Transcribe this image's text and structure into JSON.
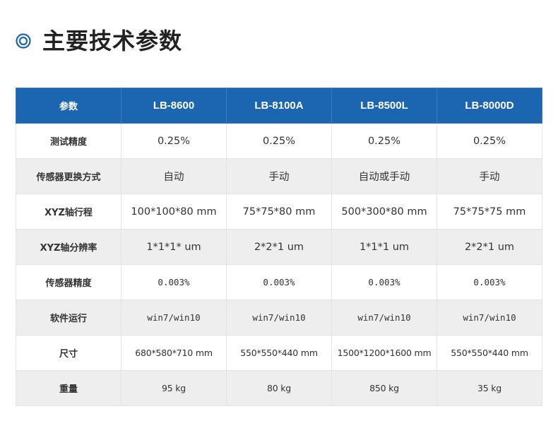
{
  "section": {
    "title": "主要技术参数",
    "icon": "target-circle-icon",
    "accent_color": "#1c65b1"
  },
  "table": {
    "header": [
      "参数",
      "LB-8600",
      "LB-8100A",
      "LB-8500L",
      "LB-8000D"
    ],
    "rows": [
      {
        "label": "测试精度",
        "values": [
          "0.25%",
          "0.25%",
          "0.25%",
          "0.25%"
        ]
      },
      {
        "label": "传感器更换方式",
        "values": [
          "自动",
          "手动",
          "自动或手动",
          "手动"
        ]
      },
      {
        "label": "XYZ轴行程",
        "values": [
          "100*100*80 mm",
          "75*75*80 mm",
          "500*300*80 mm",
          "75*75*75 mm"
        ]
      },
      {
        "label": "XYZ轴分辨率",
        "values": [
          "1*1*1* um",
          "2*2*1 um",
          "1*1*1 um",
          "2*2*1 um"
        ]
      },
      {
        "label": "传感器精度",
        "values": [
          "0.003%",
          "0.003%",
          "0.003%",
          "0.003%"
        ]
      },
      {
        "label": "软件运行",
        "values": [
          "win7/win10",
          "win7/win10",
          "win7/win10",
          "win7/win10"
        ]
      },
      {
        "label": "尺寸",
        "values": [
          "680*580*710 mm",
          "550*550*440 mm",
          "1500*1200*1600 mm",
          "550*550*440 mm"
        ]
      },
      {
        "label": "重量",
        "values": [
          "95 kg",
          "80 kg",
          "850 kg",
          "35 kg"
        ]
      }
    ]
  },
  "colors": {
    "header_bg": "#1c65b1",
    "header_text": "#ffffff",
    "row_alt_bg": "#eeeeee",
    "border": "#e3e3e3"
  }
}
